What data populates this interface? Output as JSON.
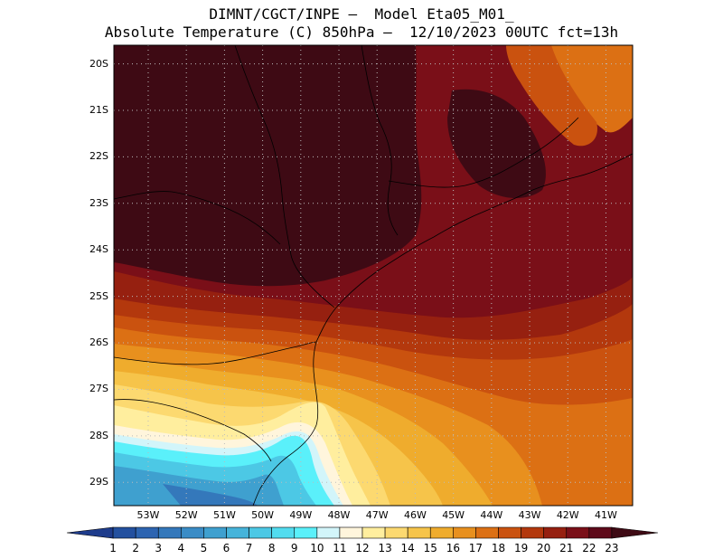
{
  "title": {
    "line1": "DIMNT/CGCT/INPE —  Model Eta05_M01_",
    "line2": "Absolute Temperature (C) 850hPa —  12/10/2023 00UTC fct=13h"
  },
  "axes": {
    "lat_labels": [
      "20S",
      "21S",
      "22S",
      "23S",
      "24S",
      "25S",
      "26S",
      "27S",
      "28S",
      "29S"
    ],
    "lon_labels": [
      "53W",
      "52W",
      "51W",
      "50W",
      "49W",
      "48W",
      "47W",
      "46W",
      "45W",
      "44W",
      "43W",
      "42W",
      "41W"
    ],
    "lat_range": [
      -29.5,
      -19.6
    ],
    "lon_range": [
      -53.9,
      -40.3
    ],
    "grid": "dotted"
  },
  "colorbar": {
    "labels": [
      "1",
      "2",
      "3",
      "4",
      "5",
      "6",
      "7",
      "8",
      "9",
      "10",
      "11",
      "12",
      "13",
      "14",
      "15",
      "16",
      "17",
      "18",
      "19",
      "20",
      "21",
      "22",
      "23"
    ],
    "colors": [
      "#1e3c8c",
      "#23509f",
      "#2d64b1",
      "#3478bb",
      "#3a8cc6",
      "#3fa0cf",
      "#46b4da",
      "#4cc8e5",
      "#52dcef",
      "#5af0fa",
      "#d2f5fa",
      "#fff5dc",
      "#ffee9e",
      "#fcd970",
      "#f6c44a",
      "#efac2d",
      "#e8901e",
      "#dc7014",
      "#ca520f",
      "#b3380d",
      "#962010",
      "#7a0f18",
      "#5e0a1a",
      "#3e0a14"
    ]
  },
  "map_regions": [
    {
      "name": "base",
      "color": "#7a0f18"
    },
    {
      "name": "band-21",
      "color": "#962010"
    },
    {
      "name": "band-20",
      "color": "#b3380d"
    },
    {
      "name": "band-19",
      "color": "#ca520f"
    },
    {
      "name": "band-18",
      "color": "#dc7014"
    },
    {
      "name": "band-17",
      "color": "#e8901e"
    },
    {
      "name": "band-16",
      "color": "#efac2d"
    },
    {
      "name": "band-15",
      "color": "#f6c44a"
    },
    {
      "name": "band-14",
      "color": "#fcd970"
    },
    {
      "name": "band-13",
      "color": "#ffee9e"
    },
    {
      "name": "band-12",
      "color": "#fff5dc"
    },
    {
      "name": "band-11",
      "color": "#d2f5fa"
    },
    {
      "name": "band-10",
      "color": "#5af0fa"
    },
    {
      "name": "band-9",
      "color": "#4cc8e5"
    },
    {
      "name": "band-7",
      "color": "#3fa0cf"
    },
    {
      "name": "band-5",
      "color": "#3478bb"
    },
    {
      "name": "inland-23",
      "color": "#3e0a14"
    },
    {
      "name": "ne-warm",
      "color": "#3e0a14"
    },
    {
      "name": "ne-18",
      "color": "#dc7014"
    },
    {
      "name": "ne-19",
      "color": "#ca520f"
    }
  ]
}
